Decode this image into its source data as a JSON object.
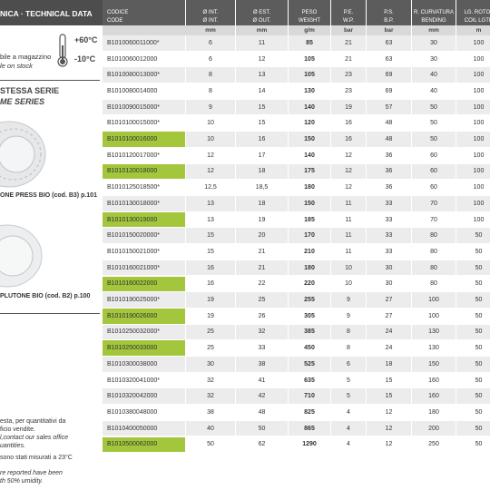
{
  "left": {
    "section_title": "NICA · TECHNICAL DATA",
    "temp_max": "+60°C",
    "temp_min": "-10°C",
    "stock_it": "bile a magazzino",
    "stock_en": "le on stock",
    "series_it": "STESSA SERIE",
    "series_en": "ME SERIES",
    "product1": "ONE PRESS BIO (cod. B3) p.101",
    "product2": " PLUTONE BIO (cod. B2) p.100",
    "note1": [
      "esta, per quantitativi da",
      "ficio vendite."
    ],
    "note1_en": [
      "l,contact our sales office",
      "uantities."
    ],
    "note2": "sono stati misurati a 23°C",
    "note2_en": [
      "re reported have been",
      "th 50% umidity."
    ]
  },
  "table": {
    "header_it": [
      "CODICE",
      "Ø INT.",
      "Ø EST.",
      "PESO",
      "P.E.",
      "P.S.",
      "R. CURVATURA",
      "LG. ROTOL"
    ],
    "header_en": [
      "CODE",
      "Ø INT.",
      "Ø OUT.",
      "WEIGHT",
      "W.P.",
      "B.P.",
      "BENDING",
      "COIL LGTH"
    ],
    "units": [
      "mm",
      "mm",
      "g/m",
      "bar",
      "bar",
      "mm",
      "m"
    ],
    "rows": [
      {
        "cells": [
          "B1010060011000*",
          "6",
          "11",
          "85",
          "21",
          "63",
          "30",
          "100"
        ],
        "highlight": false
      },
      {
        "cells": [
          "B1010060012000",
          "6",
          "12",
          "105",
          "21",
          "63",
          "30",
          "100"
        ],
        "highlight": false
      },
      {
        "cells": [
          "B1010080013000*",
          "8",
          "13",
          "105",
          "23",
          "69",
          "40",
          "100"
        ],
        "highlight": false
      },
      {
        "cells": [
          "B1010080014000",
          "8",
          "14",
          "130",
          "23",
          "69",
          "40",
          "100"
        ],
        "highlight": false
      },
      {
        "cells": [
          "B1010090015000*",
          "9",
          "15",
          "140",
          "19",
          "57",
          "50",
          "100"
        ],
        "highlight": false
      },
      {
        "cells": [
          "B1010100015000*",
          "10",
          "15",
          "120",
          "16",
          "48",
          "50",
          "100"
        ],
        "highlight": false
      },
      {
        "cells": [
          "B1010100016000",
          "10",
          "16",
          "150",
          "16",
          "48",
          "50",
          "100"
        ],
        "highlight": true
      },
      {
        "cells": [
          "B1010120017000*",
          "12",
          "17",
          "140",
          "12",
          "36",
          "60",
          "100"
        ],
        "highlight": false
      },
      {
        "cells": [
          "B1010120018000",
          "12",
          "18",
          "175",
          "12",
          "36",
          "60",
          "100"
        ],
        "highlight": true
      },
      {
        "cells": [
          "B1010125018500*",
          "12,5",
          "18,5",
          "180",
          "12",
          "36",
          "60",
          "100"
        ],
        "highlight": false
      },
      {
        "cells": [
          "B1010130018000*",
          "13",
          "18",
          "150",
          "11",
          "33",
          "70",
          "100"
        ],
        "highlight": false
      },
      {
        "cells": [
          "B1010130019000",
          "13",
          "19",
          "185",
          "11",
          "33",
          "70",
          "100"
        ],
        "highlight": true
      },
      {
        "cells": [
          "B1010150020000*",
          "15",
          "20",
          "170",
          "11",
          "33",
          "80",
          "50"
        ],
        "highlight": false
      },
      {
        "cells": [
          "B1010150021000*",
          "15",
          "21",
          "210",
          "11",
          "33",
          "80",
          "50"
        ],
        "highlight": false
      },
      {
        "cells": [
          "B1010160021000*",
          "16",
          "21",
          "180",
          "10",
          "30",
          "80",
          "50"
        ],
        "highlight": false
      },
      {
        "cells": [
          "B1010160022000",
          "16",
          "22",
          "220",
          "10",
          "30",
          "80",
          "50"
        ],
        "highlight": true
      },
      {
        "cells": [
          "B1010190025000*",
          "19",
          "25",
          "255",
          "9",
          "27",
          "100",
          "50"
        ],
        "highlight": false
      },
      {
        "cells": [
          "B1010190026000",
          "19",
          "26",
          "305",
          "9",
          "27",
          "100",
          "50"
        ],
        "highlight": true
      },
      {
        "cells": [
          "B1010250032000*",
          "25",
          "32",
          "385",
          "8",
          "24",
          "130",
          "50"
        ],
        "highlight": false
      },
      {
        "cells": [
          "B1010250033000",
          "25",
          "33",
          "450",
          "8",
          "24",
          "130",
          "50"
        ],
        "highlight": true
      },
      {
        "cells": [
          "B1010300038000",
          "30",
          "38",
          "525",
          "6",
          "18",
          "150",
          "50"
        ],
        "highlight": false
      },
      {
        "cells": [
          "B1010320041000*",
          "32",
          "41",
          "635",
          "5",
          "15",
          "160",
          "50"
        ],
        "highlight": false
      },
      {
        "cells": [
          "B1010320042000",
          "32",
          "42",
          "710",
          "5",
          "15",
          "160",
          "50"
        ],
        "highlight": false
      },
      {
        "cells": [
          "B1010380048000",
          "38",
          "48",
          "825",
          "4",
          "12",
          "180",
          "50"
        ],
        "highlight": false
      },
      {
        "cells": [
          "B1010400050000",
          "40",
          "50",
          "865",
          "4",
          "12",
          "200",
          "50"
        ],
        "highlight": false
      },
      {
        "cells": [
          "B1010500062000",
          "50",
          "62",
          "1290",
          "4",
          "12",
          "250",
          "50"
        ],
        "highlight": true
      }
    ]
  }
}
